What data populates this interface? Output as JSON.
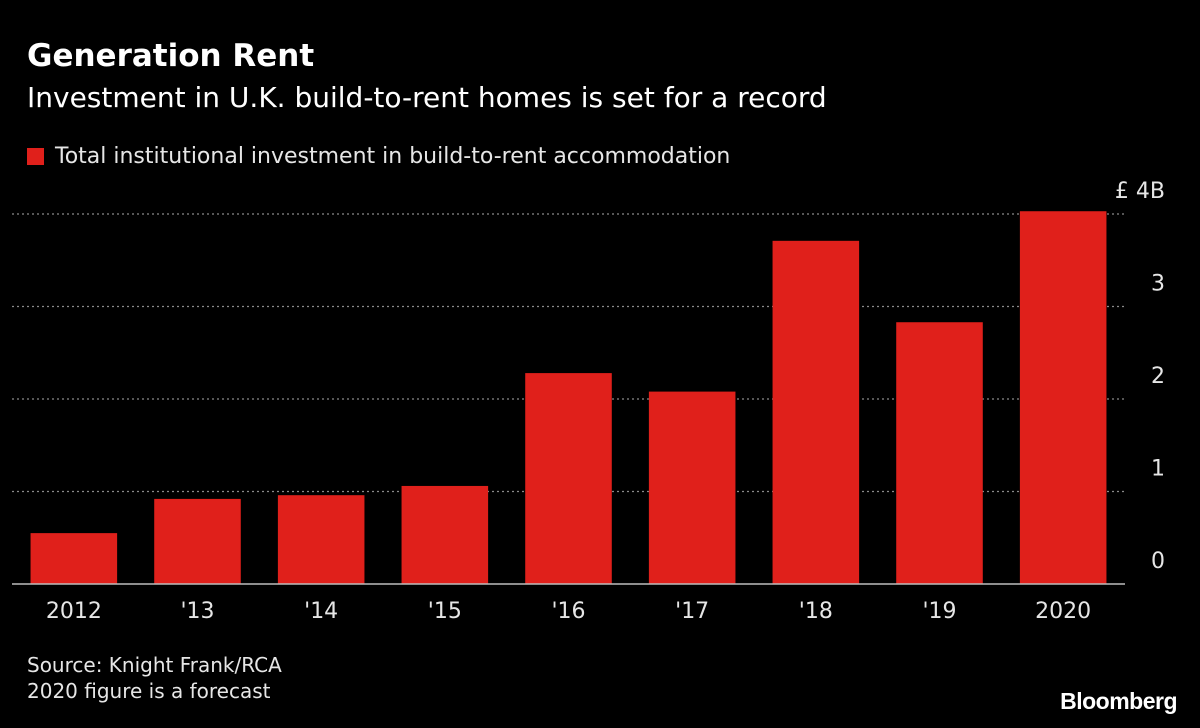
{
  "header": {
    "title": "Generation Rent",
    "subtitle": "Investment in U.K. build-to-rent homes is set for a record"
  },
  "legend": {
    "label": "Total institutional investment in build-to-rent accommodation"
  },
  "colors": {
    "background": "#000000",
    "bar": "#e0201b",
    "gridline": "#8a8a8a",
    "axis": "#bdbdbd",
    "text": "#ffffff",
    "muted_text": "#e6e6e6"
  },
  "chart_data": {
    "type": "bar",
    "title": "Generation Rent",
    "subtitle": "Investment in U.K. build-to-rent homes is set for a record",
    "categories": [
      "2012",
      "'13",
      "'14",
      "'15",
      "'16",
      "'17",
      "'18",
      "'19",
      "2020"
    ],
    "series": [
      {
        "name": "Total institutional investment in build-to-rent accommodation",
        "values": [
          0.55,
          0.92,
          0.96,
          1.06,
          2.28,
          2.08,
          3.71,
          2.83,
          4.03
        ]
      }
    ],
    "ylim": [
      0,
      4
    ],
    "yticks": [
      0,
      1,
      2,
      3,
      4
    ],
    "ytick_labels": [
      "0",
      "1",
      "2",
      "3",
      "£ 4B"
    ],
    "xlabel": "",
    "ylabel": "",
    "y_axis_side": "right",
    "grid": "horizontal dotted",
    "legend_position": "top-left"
  },
  "footer": {
    "source": "Source: Knight Frank/RCA",
    "note": "2020 figure is a forecast",
    "brand": "Bloomberg"
  }
}
